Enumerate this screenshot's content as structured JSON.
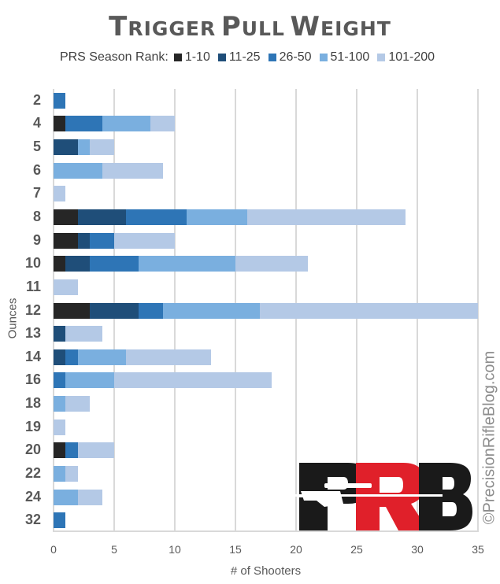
{
  "chart_data": {
    "type": "bar",
    "orientation": "horizontal",
    "stacked": true,
    "title": "Trigger Pull Weight",
    "legend_title": "PRS Season Rank:",
    "xlabel": "# of Shooters",
    "ylabel": "Ounces",
    "xlim": [
      0,
      35
    ],
    "xticks": [
      0,
      5,
      10,
      15,
      20,
      25,
      30,
      35
    ],
    "grid": true,
    "legend_position": "top",
    "categories": [
      "2",
      "4",
      "5",
      "6",
      "7",
      "8",
      "9",
      "10",
      "11",
      "12",
      "13",
      "14",
      "16",
      "18",
      "19",
      "20",
      "22",
      "24",
      "32"
    ],
    "series": [
      {
        "name": "1-10",
        "color": "#262626",
        "values": [
          0,
          1,
          0,
          0,
          0,
          2,
          2,
          1,
          0,
          3,
          0,
          0,
          0,
          0,
          0,
          1,
          0,
          0,
          0
        ]
      },
      {
        "name": "11-25",
        "color": "#1f4e79",
        "values": [
          0,
          0,
          2,
          0,
          0,
          4,
          1,
          2,
          0,
          4,
          1,
          1,
          0,
          0,
          0,
          0,
          0,
          0,
          0
        ]
      },
      {
        "name": "26-50",
        "color": "#2e75b6",
        "values": [
          1,
          3,
          0,
          0,
          0,
          5,
          2,
          4,
          0,
          2,
          0,
          1,
          1,
          0,
          0,
          1,
          0,
          0,
          1
        ]
      },
      {
        "name": "51-100",
        "color": "#7aafdf",
        "values": [
          0,
          4,
          1,
          4,
          0,
          5,
          0,
          8,
          0,
          8,
          0,
          4,
          4,
          1,
          0,
          0,
          1,
          2,
          0
        ]
      },
      {
        "name": "101-200",
        "color": "#b4c9e6",
        "values": [
          0,
          2,
          2,
          5,
          1,
          13,
          5,
          6,
          2,
          18,
          3,
          7,
          13,
          2,
          1,
          3,
          1,
          2,
          0
        ]
      }
    ]
  },
  "watermark": "©PrecisionRifleBlog.com",
  "logo": {
    "letters": [
      "P",
      "R",
      "B"
    ],
    "colors": [
      "#1a1a1a",
      "#e0202a",
      "#1a1a1a"
    ]
  }
}
